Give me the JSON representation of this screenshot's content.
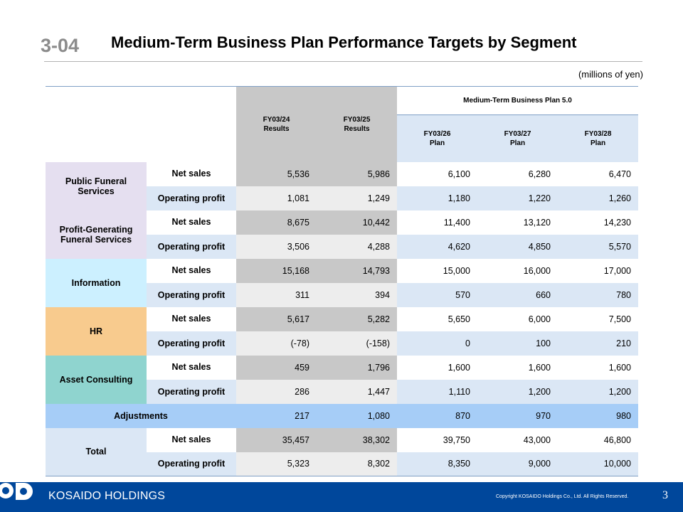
{
  "header": {
    "section_number": "3-04",
    "title": "Medium-Term Business Plan Performance Targets by Segment",
    "unit_note": "(millions of yen)"
  },
  "table": {
    "results_columns": [
      {
        "year": "FY03/24",
        "sub": "Results"
      },
      {
        "year": "FY03/25",
        "sub": "Results"
      }
    ],
    "plan_group_label": "Medium-Term Business Plan 5.0",
    "plan_columns": [
      {
        "year": "FY03/26",
        "sub": "Plan"
      },
      {
        "year": "FY03/27",
        "sub": "Plan"
      },
      {
        "year": "FY03/28",
        "sub": "Plan"
      }
    ],
    "segments": [
      {
        "name_lines": [
          "Public Funeral",
          "Services"
        ],
        "net_sales_label": "Net sales",
        "op_label": "Operating profit",
        "net_sales": [
          "5,536",
          "5,986",
          "6,100",
          "6,280",
          "6,470"
        ],
        "operating_profit": [
          "1,081",
          "1,249",
          "1,180",
          "1,220",
          "1,260"
        ]
      },
      {
        "name_lines": [
          "Profit-Generating",
          "Funeral Services"
        ],
        "net_sales_label": "Net sales",
        "op_label": "Operating profit",
        "net_sales": [
          "8,675",
          "10,442",
          "11,400",
          "13,120",
          "14,230"
        ],
        "operating_profit": [
          "3,506",
          "4,288",
          "4,620",
          "4,850",
          "5,570"
        ]
      },
      {
        "name_lines": [
          "Information"
        ],
        "net_sales_label": "Net sales",
        "op_label": "Operating profit",
        "net_sales": [
          "15,168",
          "14,793",
          "15,000",
          "16,000",
          "17,000"
        ],
        "operating_profit": [
          "311",
          "394",
          "570",
          "660",
          "780"
        ]
      },
      {
        "name_lines": [
          "HR"
        ],
        "net_sales_label": "Net sales",
        "op_label": "Operating profit",
        "net_sales": [
          "5,617",
          "5,282",
          "5,650",
          "6,000",
          "7,500"
        ],
        "operating_profit": [
          "(-78)",
          "(-158)",
          "0",
          "100",
          "210"
        ]
      },
      {
        "name_lines": [
          "Asset Consulting"
        ],
        "net_sales_label": "Net sales",
        "op_label": "Operating profit",
        "net_sales": [
          "459",
          "1,796",
          "1,600",
          "1,600",
          "1,600"
        ],
        "operating_profit": [
          "286",
          "1,447",
          "1,110",
          "1,200",
          "1,200"
        ]
      }
    ],
    "adjustments": {
      "label": "Adjustments",
      "values": [
        "217",
        "1,080",
        "870",
        "970",
        "980"
      ]
    },
    "total": {
      "name_lines": [
        "Total"
      ],
      "net_sales_label": "Net sales",
      "op_label": "Operating profit",
      "net_sales": [
        "35,457",
        "38,302",
        "39,750",
        "43,000",
        "46,800"
      ],
      "operating_profit": [
        "5,323",
        "8,302",
        "8,350",
        "9,000",
        "10,000"
      ]
    }
  },
  "footer": {
    "brand": "KOSAIDO HOLDINGS",
    "copyright": "Copyright  KOSAIDO Holdings Co., Ltd. All Rights Reserved.",
    "page_number": "3"
  },
  "colors": {
    "footer_bar": "#00479b",
    "results_header": "#c8c8c8",
    "plan_header": "#dbe7f5",
    "funeral": "#e5dff0",
    "information": "#ccf0ff",
    "hr": "#f8cb8e",
    "asset_consulting": "#8fd4cf",
    "adjustments": "#a6cdf7"
  }
}
